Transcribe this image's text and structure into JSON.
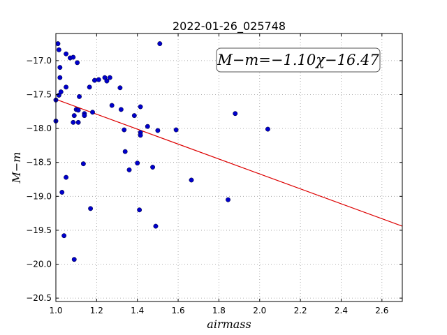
{
  "chart_data": {
    "type": "scatter",
    "title": "2022-01-26_025748",
    "xlabel": "airmass",
    "ylabel": "M−m",
    "xlim": [
      1.0,
      2.7
    ],
    "ylim": [
      -20.55,
      -16.6
    ],
    "x_ticks": [
      1.0,
      1.2,
      1.4,
      1.6,
      1.8,
      2.0,
      2.2,
      2.4,
      2.6
    ],
    "x_tick_labels": [
      "1.0",
      "1.2",
      "1.4",
      "1.6",
      "1.8",
      "2.0",
      "2.2",
      "2.4",
      "2.6"
    ],
    "y_ticks": [
      -17.0,
      -17.5,
      -18.0,
      -18.5,
      -19.0,
      -19.5,
      -20.0,
      -20.5
    ],
    "y_tick_labels": [
      "−17.0",
      "−17.5",
      "−18.0",
      "−18.5",
      "−19.0",
      "−19.5",
      "−20.0",
      "−20.5"
    ],
    "grid": true,
    "annotation": "M−m=−1.10χ−16.47",
    "fit": {
      "slope": -1.1,
      "intercept": -16.47
    },
    "colors": {
      "points": "#0000cc",
      "fit_line": "#dd0000",
      "grid": "#999999"
    },
    "points": [
      {
        "x": 1.0,
        "y": -17.58
      },
      {
        "x": 1.0,
        "y": -17.89
      },
      {
        "x": 1.01,
        "y": -16.75
      },
      {
        "x": 1.015,
        "y": -16.84
      },
      {
        "x": 1.015,
        "y": -17.51
      },
      {
        "x": 1.02,
        "y": -17.25
      },
      {
        "x": 1.02,
        "y": -17.1
      },
      {
        "x": 1.025,
        "y": -17.46
      },
      {
        "x": 1.03,
        "y": -18.94
      },
      {
        "x": 1.04,
        "y": -19.58
      },
      {
        "x": 1.05,
        "y": -16.9
      },
      {
        "x": 1.05,
        "y": -17.39
      },
      {
        "x": 1.05,
        "y": -18.72
      },
      {
        "x": 1.07,
        "y": -16.96
      },
      {
        "x": 1.085,
        "y": -16.95
      },
      {
        "x": 1.085,
        "y": -17.91
      },
      {
        "x": 1.09,
        "y": -17.81
      },
      {
        "x": 1.09,
        "y": -19.93
      },
      {
        "x": 1.1,
        "y": -17.72
      },
      {
        "x": 1.105,
        "y": -17.03
      },
      {
        "x": 1.11,
        "y": -17.73
      },
      {
        "x": 1.11,
        "y": -17.91
      },
      {
        "x": 1.115,
        "y": -17.53
      },
      {
        "x": 1.135,
        "y": -18.52
      },
      {
        "x": 1.14,
        "y": -17.78
      },
      {
        "x": 1.14,
        "y": -17.81
      },
      {
        "x": 1.165,
        "y": -17.39
      },
      {
        "x": 1.17,
        "y": -19.18
      },
      {
        "x": 1.18,
        "y": -17.76
      },
      {
        "x": 1.19,
        "y": -17.29
      },
      {
        "x": 1.21,
        "y": -17.28
      },
      {
        "x": 1.24,
        "y": -17.25
      },
      {
        "x": 1.25,
        "y": -17.3
      },
      {
        "x": 1.265,
        "y": -17.25
      },
      {
        "x": 1.275,
        "y": -17.66
      },
      {
        "x": 1.315,
        "y": -17.4
      },
      {
        "x": 1.32,
        "y": -17.72
      },
      {
        "x": 1.335,
        "y": -18.02
      },
      {
        "x": 1.34,
        "y": -18.34
      },
      {
        "x": 1.36,
        "y": -18.61
      },
      {
        "x": 1.385,
        "y": -17.81
      },
      {
        "x": 1.4,
        "y": -18.51
      },
      {
        "x": 1.41,
        "y": -19.2
      },
      {
        "x": 1.415,
        "y": -17.68
      },
      {
        "x": 1.415,
        "y": -18.06
      },
      {
        "x": 1.415,
        "y": -18.1
      },
      {
        "x": 1.45,
        "y": -17.97
      },
      {
        "x": 1.475,
        "y": -18.57
      },
      {
        "x": 1.49,
        "y": -19.44
      },
      {
        "x": 1.5,
        "y": -18.03
      },
      {
        "x": 1.51,
        "y": -16.75
      },
      {
        "x": 1.59,
        "y": -18.02
      },
      {
        "x": 1.665,
        "y": -18.76
      },
      {
        "x": 1.845,
        "y": -19.05
      },
      {
        "x": 1.88,
        "y": -17.78
      },
      {
        "x": 2.04,
        "y": -18.01
      }
    ]
  }
}
